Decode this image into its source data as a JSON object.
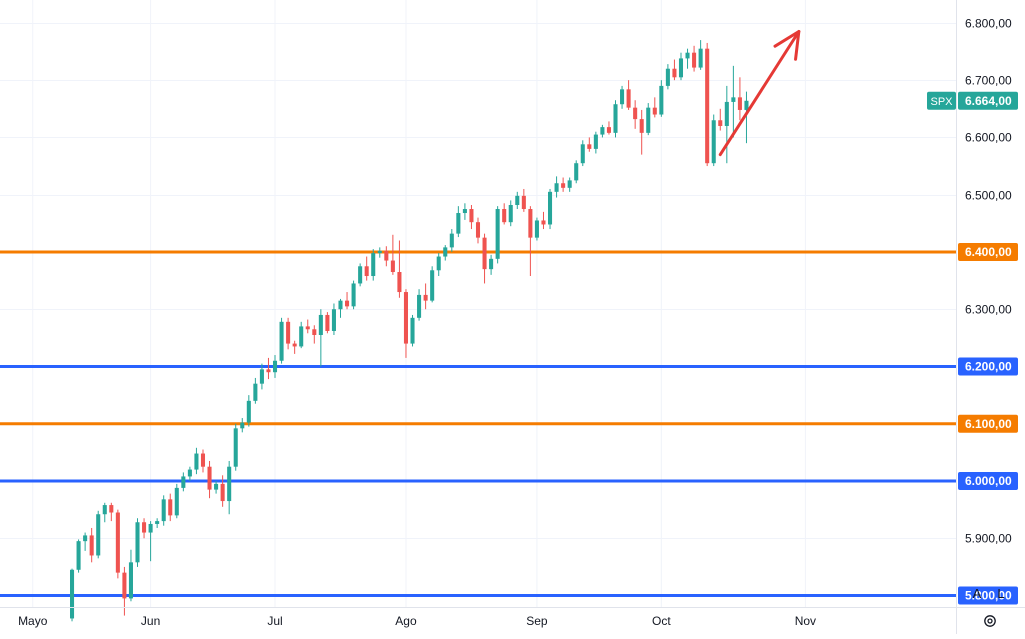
{
  "chart_data": {
    "type": "candlestick",
    "symbol": "SPX",
    "last_price": 6664,
    "last_price_label": "6.664,00",
    "ylim": [
      5780,
      6840
    ],
    "y_ticks": [
      {
        "value": 5800,
        "label": "5.800,00"
      },
      {
        "value": 5900,
        "label": "5.900,00"
      },
      {
        "value": 6000,
        "label": "6.000,00"
      },
      {
        "value": 6100,
        "label": "6.100,00"
      },
      {
        "value": 6200,
        "label": "6.200,00"
      },
      {
        "value": 6300,
        "label": "6.300,00"
      },
      {
        "value": 6400,
        "label": "6.400,00"
      },
      {
        "value": 6500,
        "label": "6.500,00"
      },
      {
        "value": 6600,
        "label": "6.600,00"
      },
      {
        "value": 6700,
        "label": "6.700,00"
      },
      {
        "value": 6800,
        "label": "6.800,00"
      }
    ],
    "x_ticks": [
      {
        "bar": -6,
        "label": "Mayo"
      },
      {
        "bar": 12,
        "label": "Jun"
      },
      {
        "bar": 31,
        "label": "Jul"
      },
      {
        "bar": 51,
        "label": "Ago"
      },
      {
        "bar": 71,
        "label": "Sep"
      },
      {
        "bar": 90,
        "label": "Oct"
      },
      {
        "bar": 112,
        "label": "Nov"
      }
    ],
    "x_bar_range": [
      -11,
      135
    ],
    "horizontal_lines": [
      {
        "value": 6400,
        "color": "#f57c00",
        "label": "6.400,00"
      },
      {
        "value": 6200,
        "color": "#2962ff",
        "label": "6.200,00"
      },
      {
        "value": 6100,
        "color": "#f57c00",
        "label": "6.100,00"
      },
      {
        "value": 6000,
        "color": "#2962ff",
        "label": "6.000,00"
      },
      {
        "value": 5800,
        "color": "#2962ff",
        "label": "5.800,00"
      }
    ],
    "annotation_arrow": {
      "from": [
        99,
        6570
      ],
      "to": [
        111,
        6785
      ],
      "color": "#e53935"
    },
    "colors": {
      "up": "#26a69a",
      "down": "#ef5350",
      "grid": "#f0f3fa",
      "text": "#131722",
      "badge": "#26a69a"
    },
    "ohlc": [
      [
        5760,
        5847,
        5755,
        5845
      ],
      [
        5845,
        5898,
        5840,
        5895
      ],
      [
        5895,
        5910,
        5878,
        5905
      ],
      [
        5905,
        5918,
        5858,
        5870
      ],
      [
        5870,
        5948,
        5865,
        5942
      ],
      [
        5942,
        5962,
        5928,
        5958
      ],
      [
        5958,
        5962,
        5930,
        5945
      ],
      [
        5945,
        5950,
        5830,
        5840
      ],
      [
        5840,
        5850,
        5765,
        5795
      ],
      [
        5795,
        5880,
        5790,
        5858
      ],
      [
        5858,
        5935,
        5850,
        5928
      ],
      [
        5928,
        5935,
        5900,
        5910
      ],
      [
        5910,
        5930,
        5860,
        5925
      ],
      [
        5925,
        5935,
        5918,
        5930
      ],
      [
        5930,
        5975,
        5922,
        5968
      ],
      [
        5968,
        5978,
        5930,
        5940
      ],
      [
        5940,
        5995,
        5935,
        5988
      ],
      [
        5988,
        6015,
        5982,
        6008
      ],
      [
        6008,
        6025,
        6000,
        6020
      ],
      [
        6020,
        6058,
        6012,
        6048
      ],
      [
        6048,
        6055,
        6015,
        6025
      ],
      [
        6025,
        6035,
        5970,
        5985
      ],
      [
        5985,
        6000,
        5978,
        5995
      ],
      [
        5995,
        6010,
        5955,
        5965
      ],
      [
        5965,
        6035,
        5942,
        6025
      ],
      [
        6025,
        6100,
        6018,
        6092
      ],
      [
        6092,
        6110,
        6085,
        6102
      ],
      [
        6102,
        6150,
        6095,
        6140
      ],
      [
        6140,
        6180,
        6135,
        6170
      ],
      [
        6170,
        6205,
        6160,
        6195
      ],
      [
        6195,
        6215,
        6178,
        6190
      ],
      [
        6190,
        6220,
        6180,
        6210
      ],
      [
        6210,
        6285,
        6205,
        6278
      ],
      [
        6278,
        6285,
        6230,
        6240
      ],
      [
        6240,
        6245,
        6222,
        6235
      ],
      [
        6235,
        6278,
        6232,
        6270
      ],
      [
        6270,
        6282,
        6258,
        6265
      ],
      [
        6265,
        6272,
        6240,
        6255
      ],
      [
        6255,
        6300,
        6200,
        6290
      ],
      [
        6290,
        6295,
        6258,
        6262
      ],
      [
        6262,
        6310,
        6255,
        6300
      ],
      [
        6300,
        6318,
        6285,
        6315
      ],
      [
        6315,
        6330,
        6300,
        6305
      ],
      [
        6305,
        6350,
        6300,
        6345
      ],
      [
        6345,
        6380,
        6340,
        6375
      ],
      [
        6375,
        6392,
        6350,
        6358
      ],
      [
        6358,
        6405,
        6350,
        6398
      ],
      [
        6398,
        6408,
        6390,
        6402
      ],
      [
        6402,
        6410,
        6375,
        6385
      ],
      [
        6385,
        6430,
        6360,
        6365
      ],
      [
        6365,
        6420,
        6320,
        6330
      ],
      [
        6330,
        6335,
        6215,
        6240
      ],
      [
        6240,
        6290,
        6235,
        6285
      ],
      [
        6285,
        6335,
        6280,
        6325
      ],
      [
        6325,
        6345,
        6300,
        6315
      ],
      [
        6315,
        6375,
        6312,
        6368
      ],
      [
        6368,
        6398,
        6358,
        6392
      ],
      [
        6392,
        6412,
        6385,
        6408
      ],
      [
        6408,
        6440,
        6400,
        6432
      ],
      [
        6432,
        6480,
        6426,
        6468
      ],
      [
        6468,
        6485,
        6456,
        6475
      ],
      [
        6475,
        6482,
        6440,
        6452
      ],
      [
        6452,
        6460,
        6415,
        6425
      ],
      [
        6425,
        6432,
        6345,
        6370
      ],
      [
        6370,
        6395,
        6360,
        6388
      ],
      [
        6388,
        6480,
        6380,
        6475
      ],
      [
        6475,
        6485,
        6448,
        6452
      ],
      [
        6452,
        6490,
        6445,
        6482
      ],
      [
        6482,
        6505,
        6475,
        6498
      ],
      [
        6498,
        6510,
        6470,
        6475
      ],
      [
        6475,
        6480,
        6358,
        6425
      ],
      [
        6425,
        6460,
        6420,
        6455
      ],
      [
        6455,
        6470,
        6440,
        6448
      ],
      [
        6448,
        6510,
        6440,
        6505
      ],
      [
        6505,
        6532,
        6495,
        6520
      ],
      [
        6520,
        6530,
        6505,
        6512
      ],
      [
        6512,
        6530,
        6505,
        6525
      ],
      [
        6525,
        6560,
        6520,
        6555
      ],
      [
        6555,
        6595,
        6550,
        6588
      ],
      [
        6588,
        6600,
        6575,
        6580
      ],
      [
        6580,
        6610,
        6572,
        6605
      ],
      [
        6605,
        6622,
        6600,
        6618
      ],
      [
        6618,
        6628,
        6605,
        6608
      ],
      [
        6608,
        6665,
        6600,
        6658
      ],
      [
        6658,
        6690,
        6650,
        6684
      ],
      [
        6684,
        6700,
        6648,
        6652
      ],
      [
        6652,
        6665,
        6615,
        6632
      ],
      [
        6632,
        6648,
        6570,
        6608
      ],
      [
        6608,
        6660,
        6604,
        6652
      ],
      [
        6652,
        6670,
        6635,
        6640
      ],
      [
        6640,
        6700,
        6636,
        6690
      ],
      [
        6690,
        6728,
        6684,
        6720
      ],
      [
        6720,
        6736,
        6700,
        6705
      ],
      [
        6705,
        6748,
        6700,
        6738
      ],
      [
        6738,
        6755,
        6720,
        6748
      ],
      [
        6748,
        6760,
        6715,
        6722
      ],
      [
        6722,
        6770,
        6718,
        6755
      ],
      [
        6755,
        6765,
        6550,
        6555
      ],
      [
        6555,
        6640,
        6550,
        6630
      ],
      [
        6630,
        6650,
        6612,
        6620
      ],
      [
        6620,
        6690,
        6555,
        6662
      ],
      [
        6662,
        6725,
        6600,
        6670
      ],
      [
        6670,
        6705,
        6630,
        6648
      ],
      [
        6648,
        6680,
        6590,
        6664
      ]
    ]
  },
  "ui": {
    "autoscale_btn": "A",
    "log_btn": "L"
  }
}
